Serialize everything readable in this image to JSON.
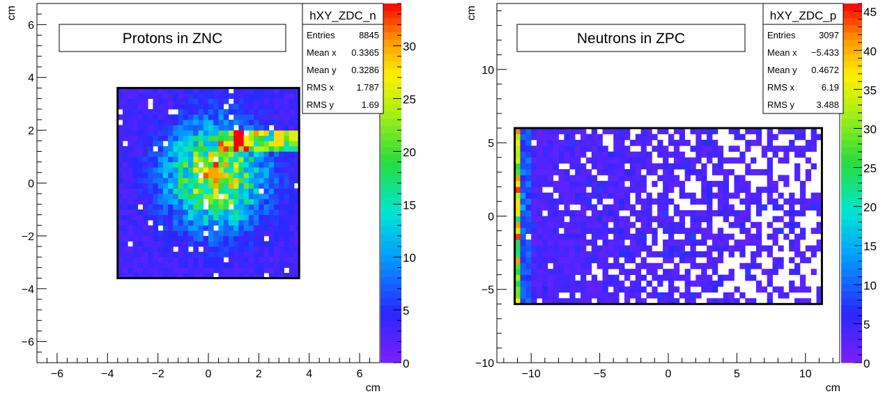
{
  "chart_data": [
    {
      "type": "heatmap",
      "title": "Protons in ZNC",
      "xlabel": "cm",
      "ylabel": "cm",
      "xlim": [
        -6.8,
        6.8
      ],
      "ylim": [
        -6.8,
        6.8
      ],
      "xticks": [
        -6,
        -4,
        -2,
        0,
        2,
        4,
        6
      ],
      "yticks": [
        -6,
        -4,
        -2,
        0,
        2,
        4,
        6
      ],
      "xtick_labels": [
        "−6",
        "−4",
        "−2",
        "0",
        "2",
        "4",
        "6"
      ],
      "ytick_labels": [
        "−6",
        "−4",
        "−2",
        "0",
        "2",
        "4",
        "6"
      ],
      "detector_region": {
        "x": [
          -3.6,
          3.6
        ],
        "y": [
          -3.6,
          3.6
        ]
      },
      "colorbar": {
        "min": 0,
        "max": 34,
        "ticks": [
          0,
          5,
          10,
          15,
          20,
          25,
          30
        ],
        "tick_labels": [
          "0",
          "5",
          "10",
          "15",
          "20",
          "25",
          "30"
        ]
      },
      "stats_box": {
        "name": "hXY_ZDC_n",
        "rows": [
          {
            "label": "Entries",
            "value": "8845"
          },
          {
            "label": "Mean x",
            "value": "0.3365"
          },
          {
            "label": "Mean y",
            "value": "0.3286"
          },
          {
            "label": "RMS x",
            "value": "1.787"
          },
          {
            "label": "RMS y",
            "value": "1.69"
          }
        ]
      },
      "hotspots": [
        {
          "x": 0.2,
          "y": 0.4,
          "value": 30
        },
        {
          "x": 1.3,
          "y": 1.7,
          "value": 34
        },
        {
          "x": 2.8,
          "y": 1.7,
          "value": 28
        },
        {
          "x": 3.4,
          "y": 1.8,
          "value": 26
        }
      ]
    },
    {
      "type": "heatmap",
      "title": "Neutrons in ZPC",
      "xlabel": "cm",
      "ylabel": "cm",
      "xlim": [
        -12.5,
        12.5
      ],
      "ylim": [
        -10,
        14.5
      ],
      "xticks": [
        -10,
        -5,
        0,
        5,
        10
      ],
      "yticks": [
        -10,
        -5,
        0,
        5,
        10
      ],
      "xtick_labels": [
        "−10",
        "−5",
        "0",
        "5",
        "10"
      ],
      "ytick_labels": [
        "−10",
        "−5",
        "0",
        "5",
        "10"
      ],
      "detector_region": {
        "x": [
          -11.2,
          11.2
        ],
        "y": [
          -6,
          6
        ]
      },
      "colorbar": {
        "min": 0,
        "max": 46,
        "ticks": [
          0,
          5,
          10,
          15,
          20,
          25,
          30,
          35,
          40,
          45
        ],
        "tick_labels": [
          "0",
          "5",
          "10",
          "15",
          "20",
          "25",
          "30",
          "35",
          "40",
          "45"
        ]
      },
      "stats_box": {
        "name": "hXY_ZDC_p",
        "rows": [
          {
            "label": "Entries",
            "value": "3097"
          },
          {
            "label": "Mean x",
            "value": "−5.433"
          },
          {
            "label": "Mean y",
            "value": "0.4672"
          },
          {
            "label": "RMS x",
            "value": "6.19"
          },
          {
            "label": "RMS y",
            "value": "3.488"
          }
        ]
      }
    }
  ]
}
